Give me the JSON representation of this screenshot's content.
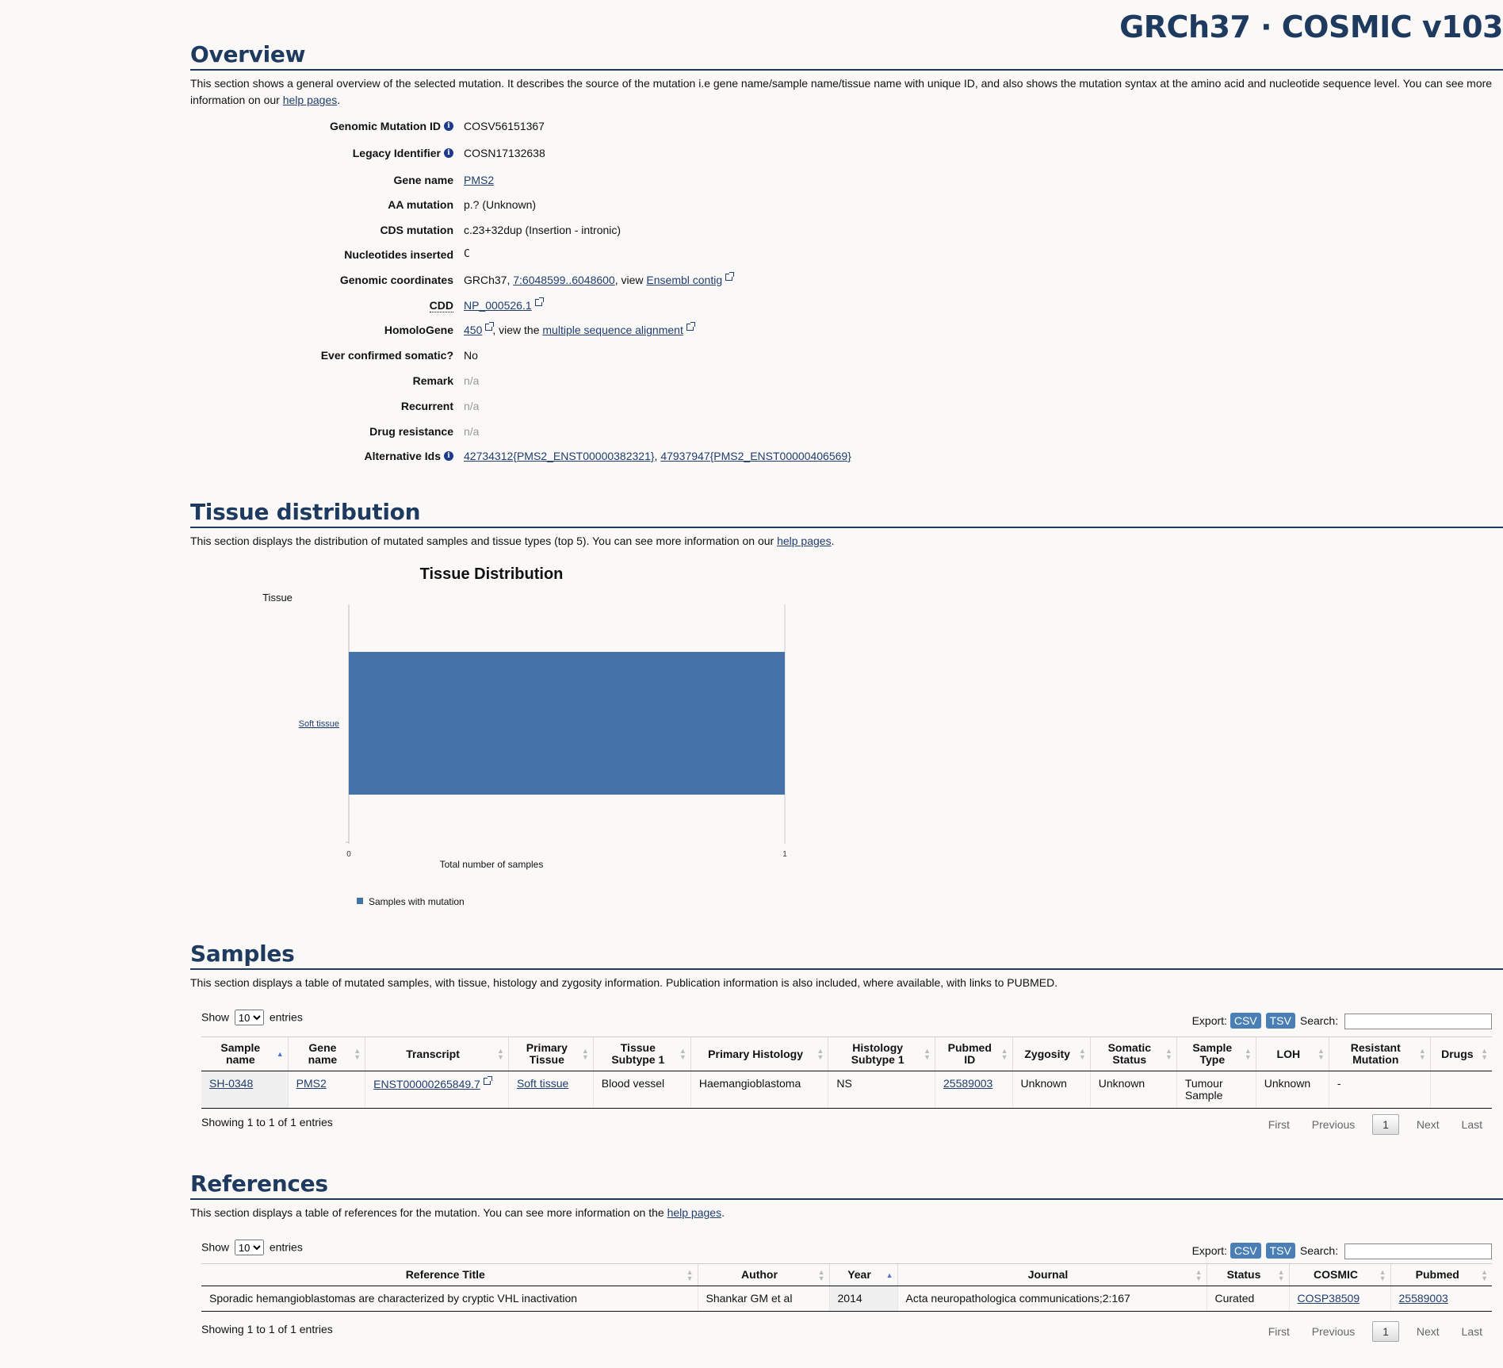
{
  "brand": "GRCh37 · COSMIC v103",
  "overview": {
    "heading": "Overview",
    "intro_text": "This section shows a general overview of the selected mutation. It describes the source of the mutation i.e gene name/sample name/tissue name with unique ID, and also shows the mutation syntax at the amino acid and nucleotide sequence level. You can see more information on our ",
    "intro_link": "help pages",
    "intro_end": ".",
    "rows": {
      "genomic_mutation_id": {
        "label": "Genomic Mutation ID",
        "value": "COSV56151367"
      },
      "legacy_identifier": {
        "label": "Legacy Identifier",
        "value": "COSN17132638"
      },
      "gene_name": {
        "label": "Gene name",
        "value": "PMS2"
      },
      "aa_mutation": {
        "label": "AA mutation",
        "value": "p.? (Unknown)"
      },
      "cds_mutation": {
        "label": "CDS mutation",
        "value": "c.23+32dup (Insertion - intronic)"
      },
      "nucleotides_inserted": {
        "label": "Nucleotides inserted",
        "value": "C"
      },
      "genomic_coordinates": {
        "label": "Genomic coordinates",
        "prefix": "GRCh37, ",
        "link": "7:6048599..6048600",
        "middle": ", view ",
        "link2": "Ensembl contig"
      },
      "cdd": {
        "label": "CDD",
        "link": "NP_000526.1"
      },
      "homologene": {
        "label": "HomoloGene",
        "link": "450",
        "middle": ", view the ",
        "link2": "multiple sequence alignment"
      },
      "ever_confirmed": {
        "label": "Ever confirmed somatic?",
        "value": "No"
      },
      "remark": {
        "label": "Remark",
        "value": "n/a"
      },
      "recurrent": {
        "label": "Recurrent",
        "value": "n/a"
      },
      "drug_resistance": {
        "label": "Drug resistance",
        "value": "n/a"
      },
      "alternative_ids": {
        "label": "Alternative Ids",
        "link": "42734312{PMS2_ENST00000382321}",
        "sep": ", ",
        "link2": "47937947{PMS2_ENST00000406569}"
      }
    }
  },
  "tissue": {
    "heading": "Tissue distribution",
    "intro_text": "This section displays the distribution of mutated samples and tissue types (top 5). You can see more information on our ",
    "intro_link": "help pages",
    "intro_end": "."
  },
  "chart_data": {
    "type": "bar",
    "orientation": "horizontal",
    "title": "Tissue Distribution",
    "ylabel": "Tissue",
    "xlabel": "Total number of samples",
    "categories": [
      "Soft tissue"
    ],
    "series": [
      {
        "name": "Samples with mutation",
        "values": [
          1
        ],
        "color": "#4572a7"
      }
    ],
    "xlim": [
      0,
      1
    ],
    "x_ticks": [
      "0",
      "1"
    ],
    "legend_position": "bottom-left"
  },
  "samples": {
    "heading": "Samples",
    "intro_text": "This section displays a table of mutated samples, with tissue, histology and zygosity information. Publication information is also included, where available, with links to PUBMED.",
    "show_label": "Show",
    "entries_label": "entries",
    "page_size": "10",
    "export_label": "Export:",
    "csv": "CSV",
    "tsv": "TSV",
    "search_label": "Search:",
    "columns": [
      "Sample name",
      "Gene name",
      "Transcript",
      "Primary Tissue",
      "Tissue Subtype 1",
      "Primary Histology",
      "Histology Subtype 1",
      "Pubmed ID",
      "Zygosity",
      "Somatic Status",
      "Sample Type",
      "LOH",
      "Resistant Mutation",
      "Drugs"
    ],
    "rows": [
      {
        "sample_name": "SH-0348",
        "gene_name": "PMS2",
        "transcript": "ENST00000265849.7",
        "primary_tissue": "Soft tissue",
        "tissue_subtype": "Blood vessel",
        "primary_histology": "Haemangioblastoma",
        "histology_subtype": "NS",
        "pubmed_id": "25589003",
        "zygosity": "Unknown",
        "somatic_status": "Unknown",
        "sample_type": "Tumour Sample",
        "loh": "Unknown",
        "resistant_mutation": "-",
        "drugs": ""
      }
    ],
    "showing": "Showing 1 to 1 of 1 entries",
    "pager": {
      "first": "First",
      "previous": "Previous",
      "current": "1",
      "next": "Next",
      "last": "Last"
    }
  },
  "references": {
    "heading": "References",
    "intro_text": "This section displays a table of references for the mutation. You can see more information on the ",
    "intro_link": "help pages",
    "intro_end": ".",
    "show_label": "Show",
    "entries_label": "entries",
    "page_size": "10",
    "export_label": "Export:",
    "csv": "CSV",
    "tsv": "TSV",
    "search_label": "Search:",
    "columns": [
      "Reference Title",
      "Author",
      "Year",
      "Journal",
      "Status",
      "COSMIC",
      "Pubmed"
    ],
    "rows": [
      {
        "title": "Sporadic hemangioblastomas are characterized by cryptic VHL inactivation",
        "author": "Shankar GM et al",
        "year": "2014",
        "journal": "Acta neuropathologica communications;2:167",
        "status": "Curated",
        "cosmic": "COSP38509",
        "pubmed": "25589003"
      }
    ],
    "showing": "Showing 1 to 1 of 1 entries",
    "pager": {
      "first": "First",
      "previous": "Previous",
      "current": "1",
      "next": "Next",
      "last": "Last"
    }
  }
}
